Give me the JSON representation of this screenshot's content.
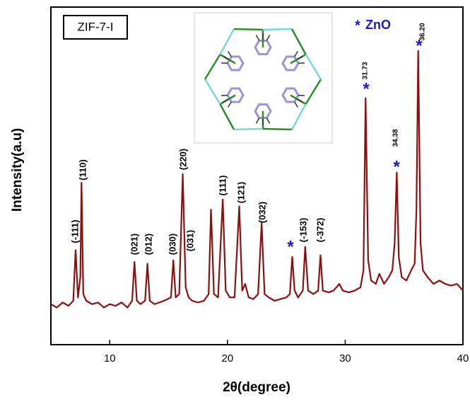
{
  "chart_data": {
    "type": "line",
    "x_label": "2θ(degree)",
    "y_label": "Intensity(a.u)",
    "xlim": [
      5,
      40
    ],
    "xticks": [
      10,
      20,
      30,
      40
    ],
    "ylim": [
      0,
      100
    ],
    "series": [
      {
        "name": "ZIF-7-I",
        "color": "#8b1010",
        "x": [
          5.0,
          5.5,
          6.0,
          6.5,
          6.9,
          7.1,
          7.3,
          7.5,
          7.6,
          7.75,
          8.0,
          8.5,
          9.0,
          9.5,
          10.0,
          10.5,
          11.0,
          11.5,
          11.9,
          12.1,
          12.3,
          12.6,
          13.0,
          13.2,
          13.4,
          13.8,
          14.2,
          14.6,
          15.2,
          15.4,
          15.6,
          15.9,
          16.2,
          16.45,
          16.7,
          17.0,
          17.5,
          18.0,
          18.4,
          18.6,
          18.85,
          19.2,
          19.6,
          19.85,
          20.2,
          20.6,
          21.0,
          21.25,
          21.5,
          21.8,
          22.2,
          22.6,
          22.9,
          23.15,
          23.5,
          24.0,
          24.5,
          25.0,
          25.3,
          25.5,
          25.7,
          26.0,
          26.4,
          26.6,
          26.85,
          27.3,
          27.7,
          27.9,
          28.1,
          28.6,
          29.0,
          29.5,
          29.8,
          30.3,
          30.8,
          31.3,
          31.55,
          31.73,
          31.95,
          32.2,
          32.6,
          32.9,
          33.3,
          33.7,
          34.0,
          34.2,
          34.38,
          34.55,
          34.8,
          35.2,
          35.6,
          35.9,
          36.05,
          36.2,
          36.4,
          36.6,
          37.0,
          37.5,
          38.0,
          38.5,
          39.0,
          39.5,
          40.0
        ],
        "values": [
          12,
          11,
          12.5,
          11.5,
          13,
          28,
          14,
          20,
          48,
          15,
          13,
          12,
          12.5,
          11,
          12,
          11.5,
          12.5,
          11,
          13,
          24.5,
          13,
          12,
          13,
          24,
          13,
          12,
          12.5,
          13,
          14,
          25,
          14,
          15,
          50.5,
          17,
          14,
          13,
          12.5,
          13,
          15,
          40,
          15,
          14,
          43,
          16,
          14,
          14,
          41,
          16,
          18,
          14,
          13.5,
          15,
          36,
          15,
          14,
          13,
          13.5,
          14,
          15,
          26,
          16,
          14,
          16,
          29,
          16,
          15,
          16,
          26.5,
          16,
          15.5,
          16,
          18,
          16,
          15.5,
          16,
          17,
          22,
          73,
          25,
          19,
          18,
          21,
          18,
          20,
          22,
          30,
          51,
          26,
          20,
          19,
          22,
          24,
          40,
          87,
          30,
          22,
          20,
          18,
          19,
          18,
          17.5,
          18,
          16
        ]
      }
    ],
    "peak_labels": [
      "(-111)",
      "(110)",
      "(021)",
      "(012)",
      "(030)",
      "(031)",
      "(220)",
      "(111)",
      "(121)",
      "(032)",
      "(-153)",
      "(-372)",
      "31.73",
      "34.38",
      "36.20"
    ],
    "zno_marker": "*",
    "zno_label": "ZnO"
  }
}
